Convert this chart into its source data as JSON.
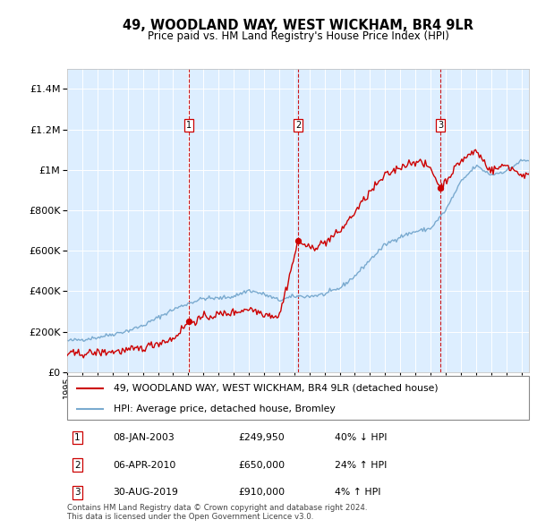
{
  "title": "49, WOODLAND WAY, WEST WICKHAM, BR4 9LR",
  "subtitle": "Price paid vs. HM Land Registry's House Price Index (HPI)",
  "legend_label_red": "49, WOODLAND WAY, WEST WICKHAM, BR4 9LR (detached house)",
  "legend_label_blue": "HPI: Average price, detached house, Bromley",
  "footer": "Contains HM Land Registry data © Crown copyright and database right 2024.\nThis data is licensed under the Open Government Licence v3.0.",
  "transactions": [
    {
      "num": 1,
      "date": "08-JAN-2003",
      "price": 249950,
      "hpi_change": "40% ↓ HPI",
      "x_year": 2003.03
    },
    {
      "num": 2,
      "date": "06-APR-2010",
      "price": 650000,
      "hpi_change": "24% ↑ HPI",
      "x_year": 2010.27
    },
    {
      "num": 3,
      "date": "30-AUG-2019",
      "price": 910000,
      "hpi_change": "4% ↑ HPI",
      "x_year": 2019.66
    }
  ],
  "red_color": "#cc0000",
  "blue_color": "#7aaacf",
  "bg_color": "#ddeeff",
  "grid_color": "#ffffff",
  "ylim": [
    0,
    1500000
  ],
  "xlim_start": 1995,
  "xlim_end": 2025.5,
  "hpi_anchors": {
    "1995": 155000,
    "1996": 162000,
    "1997": 172000,
    "1998": 188000,
    "1999": 205000,
    "2000": 230000,
    "2001": 270000,
    "2002": 310000,
    "2003": 340000,
    "2004": 365000,
    "2005": 365000,
    "2006": 375000,
    "2007": 405000,
    "2008": 385000,
    "2009": 355000,
    "2010": 375000,
    "2011": 375000,
    "2012": 385000,
    "2013": 415000,
    "2014": 475000,
    "2015": 555000,
    "2016": 630000,
    "2017": 670000,
    "2018": 695000,
    "2019": 710000,
    "2020": 800000,
    "2021": 940000,
    "2022": 1020000,
    "2023": 975000,
    "2024": 995000,
    "2025": 1045000
  },
  "red_anchors": {
    "1995": 90000,
    "1996": 92000,
    "1997": 97000,
    "1998": 102000,
    "1999": 107000,
    "2000": 120000,
    "2001": 145000,
    "2002": 165000,
    "2003.03": 249950,
    "2003.5": 255000,
    "2004": 270000,
    "2005": 285000,
    "2006": 295000,
    "2007": 315000,
    "2008": 290000,
    "2009": 275000,
    "2010.27": 650000,
    "2010.6": 635000,
    "2011": 610000,
    "2012": 640000,
    "2013": 695000,
    "2014": 790000,
    "2015": 890000,
    "2016": 970000,
    "2017": 1015000,
    "2018": 1045000,
    "2019.0": 1010000,
    "2019.66": 910000,
    "2020": 945000,
    "2021": 1045000,
    "2022": 1095000,
    "2023": 995000,
    "2024": 1025000,
    "2025": 975000
  }
}
